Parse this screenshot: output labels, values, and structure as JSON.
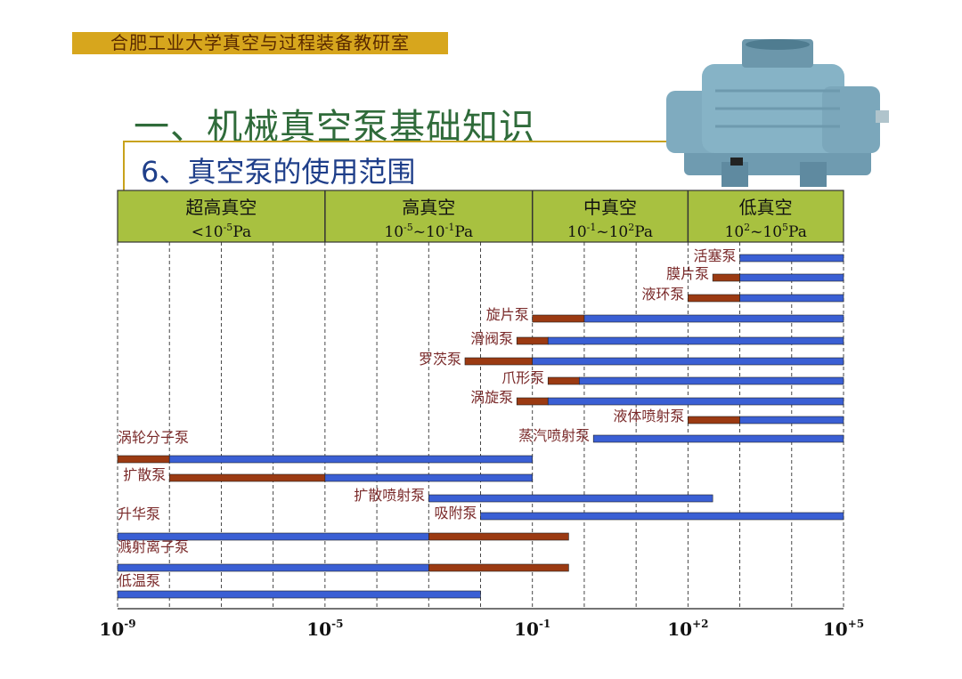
{
  "header": {
    "banner": "合肥工业大学真空与过程装备教研室",
    "title": "一、机械真空泵基础知识",
    "subtitle": "6、真空泵的使用范围"
  },
  "chart_data": {
    "type": "bar",
    "subtype": "range-bars",
    "x_axis": {
      "scale": "log",
      "lim": [
        1e-09,
        100000.0
      ],
      "tick_labels": [
        {
          "base": "10",
          "exp": "-9",
          "value": 1e-09
        },
        {
          "base": "10",
          "exp": "-5",
          "value": 1e-05
        },
        {
          "base": "10",
          "exp": "-1",
          "value": 0.1
        },
        {
          "base": "10",
          "exp": "+2",
          "value": 100
        },
        {
          "base": "10",
          "exp": "+5",
          "value": 100000
        }
      ]
    },
    "grid": "vertical dashed",
    "regions": [
      {
        "name": "超高真空",
        "range_text": [
          "<10",
          "-5",
          "Pa"
        ],
        "from": 1e-09,
        "to": 1e-05
      },
      {
        "name": "高真空",
        "range_text": [
          "10",
          "-5",
          "~10",
          "-1",
          "Pa"
        ],
        "from": 1e-05,
        "to": 0.1
      },
      {
        "name": "中真空",
        "range_text": [
          "10",
          "-1",
          "~10",
          "2",
          "Pa"
        ],
        "from": 0.1,
        "to": 100
      },
      {
        "name": "低真空",
        "range_text": [
          "10",
          "2",
          "~10",
          "5",
          "Pa"
        ],
        "from": 100,
        "to": 100000
      }
    ],
    "legend_colors": {
      "limited_range": "#9b3a12",
      "working_range": "#3a5fd4"
    },
    "pumps": [
      {
        "name": "活塞泵",
        "working": [
          1000,
          100000
        ]
      },
      {
        "name": "膜片泵",
        "limited": [
          300,
          1000
        ],
        "working": [
          1000,
          100000
        ]
      },
      {
        "name": "液环泵",
        "limited": [
          100,
          1000
        ],
        "working": [
          1000,
          100000
        ]
      },
      {
        "name": "旋片泵",
        "limited": [
          0.1,
          1
        ],
        "working": [
          1,
          100000
        ]
      },
      {
        "name": "滑阀泵",
        "limited": [
          0.05,
          0.2
        ],
        "working": [
          0.2,
          100000
        ]
      },
      {
        "name": "罗茨泵",
        "limited": [
          0.005,
          0.1
        ],
        "working": [
          0.1,
          100000
        ]
      },
      {
        "name": "爪形泵",
        "limited": [
          0.2,
          0.8
        ],
        "working": [
          0.8,
          100000
        ]
      },
      {
        "name": "涡旋泵",
        "limited": [
          0.05,
          0.2
        ],
        "working": [
          0.2,
          100000
        ]
      },
      {
        "name": "液体喷射泵",
        "limited": [
          100,
          1000
        ],
        "working": [
          1000,
          100000
        ]
      },
      {
        "name": "蒸汽喷射泵",
        "working": [
          1.5,
          100000
        ]
      },
      {
        "name": "涡轮分子泵",
        "limited": [
          1e-09,
          1e-08
        ],
        "working": [
          1e-08,
          0.1
        ]
      },
      {
        "name": "扩散泵",
        "limited": [
          1e-08,
          1e-05
        ],
        "working": [
          1e-05,
          0.1
        ]
      },
      {
        "name": "扩散喷射泵",
        "working": [
          0.001,
          300
        ]
      },
      {
        "name": "吸附泵",
        "working": [
          0.01,
          100000
        ]
      },
      {
        "name": "升华泵",
        "working": [
          1e-09,
          0.001
        ],
        "limited": [
          0.001,
          0.5
        ]
      },
      {
        "name": "溅射离子泵",
        "working": [
          1e-09,
          0.001
        ],
        "limited": [
          0.001,
          0.5
        ]
      },
      {
        "name": "低温泵",
        "working": [
          1e-09,
          0.01
        ]
      }
    ]
  }
}
